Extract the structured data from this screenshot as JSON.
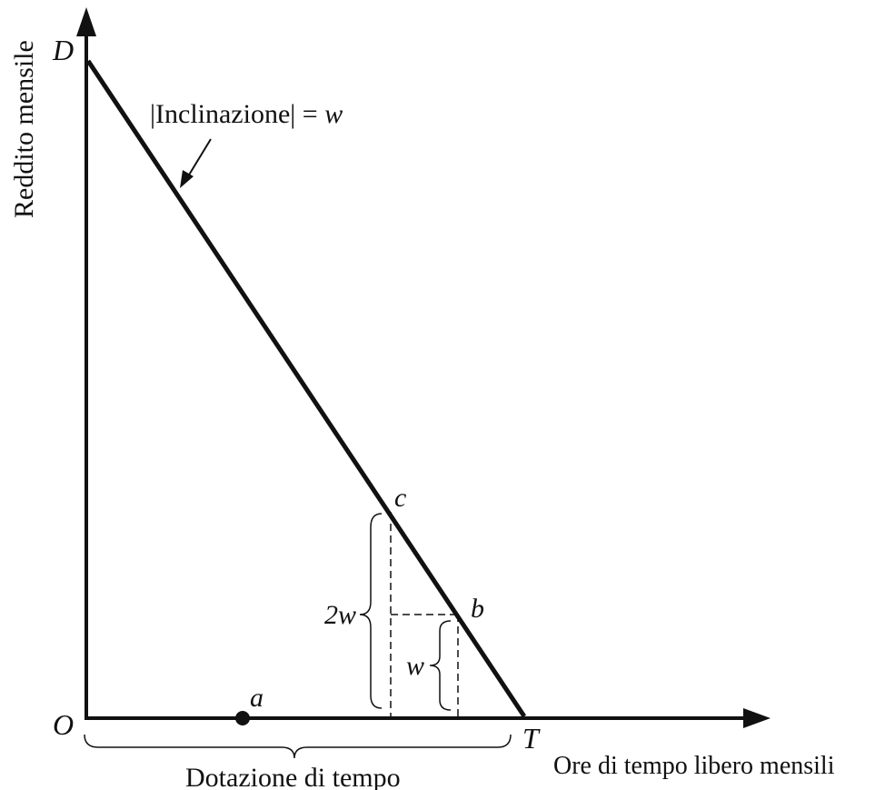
{
  "axes": {
    "y_label": "Reddito mensile",
    "x_label": "Ore di tempo libero mensili"
  },
  "points": {
    "origin": "O",
    "d": "D",
    "t": "T",
    "a": "a",
    "b": "b",
    "c": "c"
  },
  "annotations": {
    "slope_bar_left": "|",
    "slope_text": "Inclinazione",
    "slope_bar_right": "|",
    "slope_equals": " = ",
    "slope_value": "w",
    "two_w": "2w",
    "w": "w",
    "time_endowment": "Dotazione di tempo"
  },
  "colors": {
    "ink": "#111111"
  }
}
